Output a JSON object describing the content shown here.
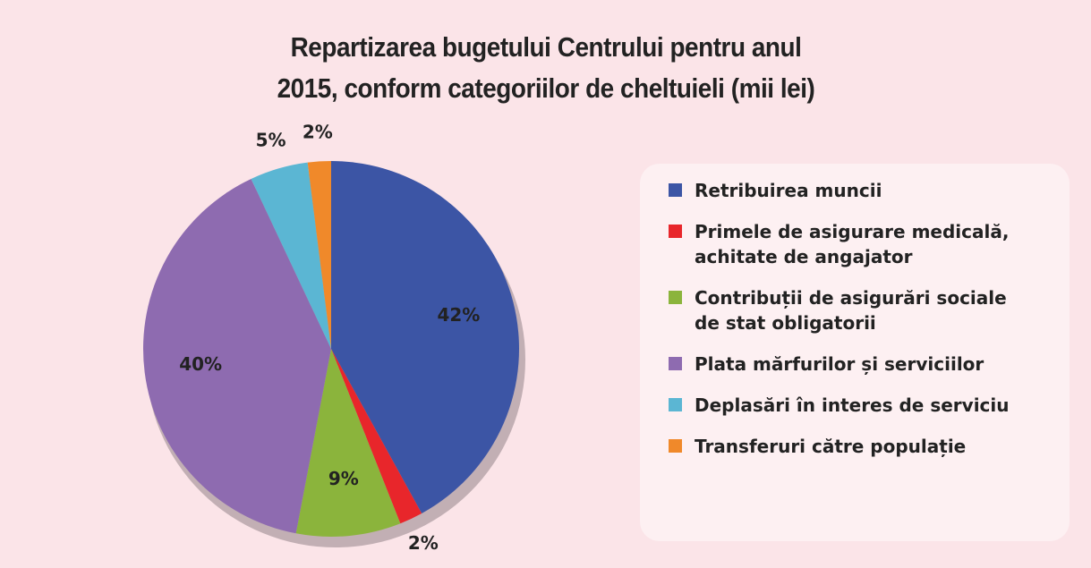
{
  "chart_data": {
    "type": "pie",
    "title": "Repartizarea bugetului Centrului pentru anul 2015, conform categoriilor de cheltuieli (mii lei)",
    "categories": [
      "Retribuirea muncii",
      "Primele de asigurare medicală, achitate de angajator",
      "Contribuții de asigurări sociale de stat obligatorii",
      "Plata mărfurilor și serviciilor",
      "Deplasări în interes de serviciu",
      "Transferuri către populație"
    ],
    "values": [
      42,
      2,
      9,
      40,
      5,
      2
    ],
    "value_labels": [
      "42%",
      "2%",
      "9%",
      "40%",
      "5%",
      "2%"
    ],
    "colors": [
      "#3c55a5",
      "#e8262b",
      "#8bb43c",
      "#8e6bb0",
      "#5bb6d3",
      "#f0892a"
    ],
    "legend": "right"
  }
}
